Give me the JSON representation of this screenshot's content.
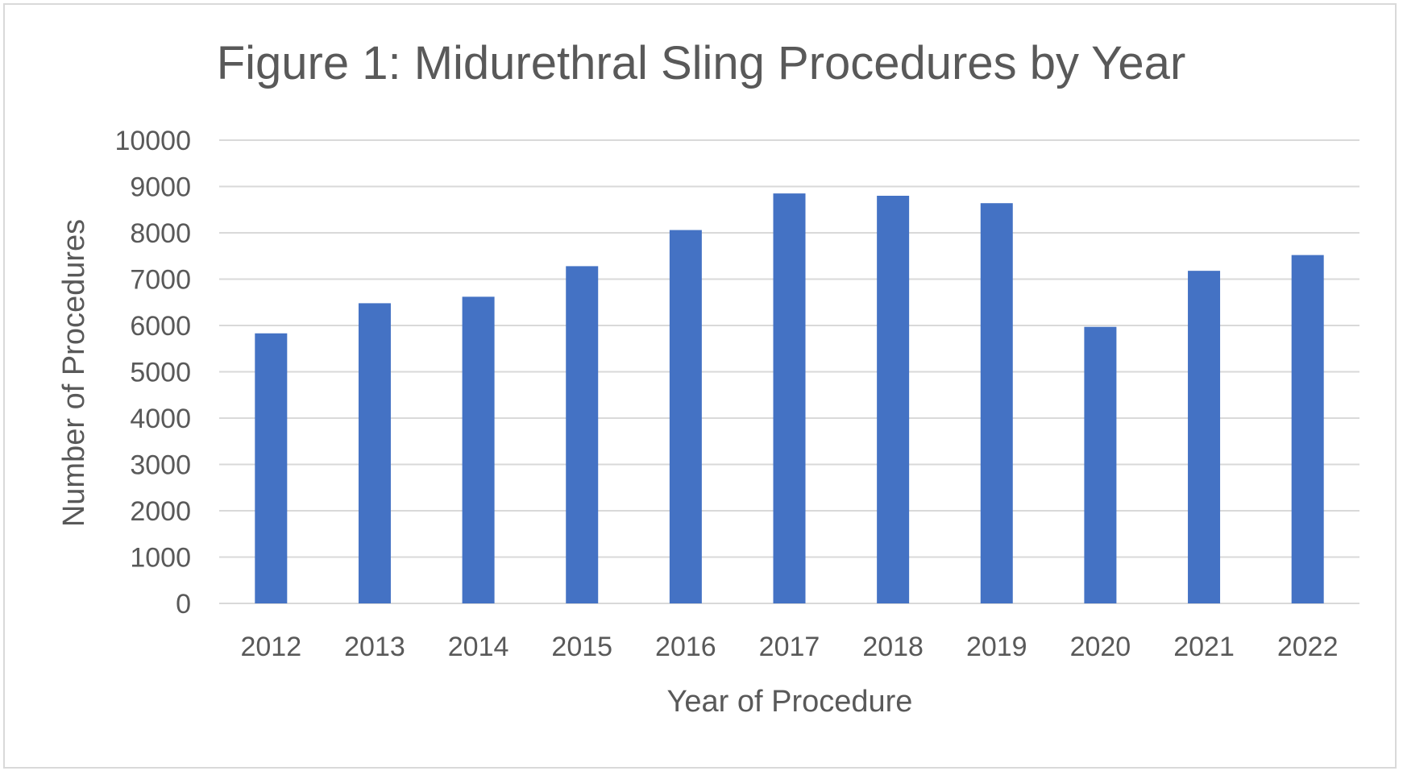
{
  "chart_data": {
    "type": "bar",
    "title": "Figure 1: Midurethral Sling Procedures by Year",
    "xlabel": "Year of Procedure",
    "ylabel": "Number of Procedures",
    "categories": [
      "2012",
      "2013",
      "2014",
      "2015",
      "2016",
      "2017",
      "2018",
      "2019",
      "2020",
      "2021",
      "2022"
    ],
    "values": [
      5830,
      6480,
      6620,
      7280,
      8060,
      8850,
      8800,
      8640,
      5970,
      7180,
      7520
    ],
    "ylim": [
      0,
      10000
    ],
    "yticks": [
      "0",
      "1000",
      "2000",
      "3000",
      "4000",
      "5000",
      "6000",
      "7000",
      "8000",
      "9000",
      "10000"
    ],
    "grid": true,
    "legend": "none",
    "bar_color": "#4472c4",
    "grid_color": "#d9d9d9",
    "text_color": "#595959"
  }
}
